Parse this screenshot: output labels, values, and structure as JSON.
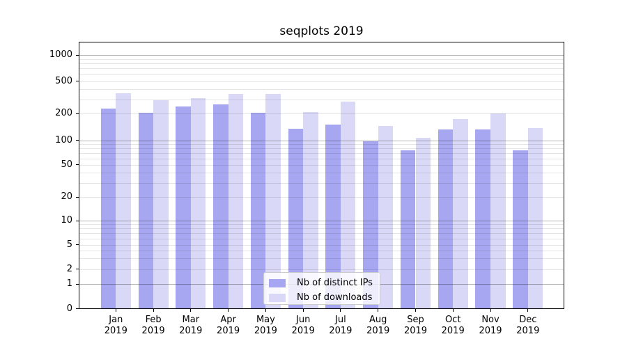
{
  "title": "seqplots 2019",
  "chart_data": {
    "type": "bar",
    "months": [
      "Jan",
      "Feb",
      "Mar",
      "Apr",
      "May",
      "Jun",
      "Jul",
      "Aug",
      "Sep",
      "Oct",
      "Nov",
      "Dec"
    ],
    "year": "2019",
    "series": [
      {
        "name": "Nb of distinct IPs",
        "color": "#a6a6f1",
        "values": [
          228,
          205,
          243,
          255,
          203,
          133,
          150,
          96,
          74,
          131,
          131,
          74
        ]
      },
      {
        "name": "Nb of downloads",
        "color": "#d9d9f7",
        "values": [
          356,
          291,
          308,
          349,
          347,
          208,
          277,
          145,
          106,
          174,
          201,
          137
        ]
      }
    ],
    "yscale": "symlog",
    "ylim": [
      0,
      1400
    ],
    "y_ticks": [
      0,
      1,
      2,
      5,
      10,
      20,
      50,
      100,
      200,
      500,
      1000
    ],
    "y_tick_labels": [
      "0",
      "1",
      "2",
      "5",
      "10",
      "20",
      "50",
      "100",
      "200",
      "500",
      "1000"
    ],
    "grid": "horizontal major and minor, drawn over bars",
    "legend_position": "inside lower-center"
  },
  "colors": {
    "distinct_ips_bar": "#a6a6f1",
    "downloads_bar": "#d9d9f7",
    "grid_major": "rgba(0,0,0,0.30)",
    "grid_minor": "rgba(0,0,0,0.10)",
    "spine": "#000000",
    "legend_border": "#cccccc"
  }
}
